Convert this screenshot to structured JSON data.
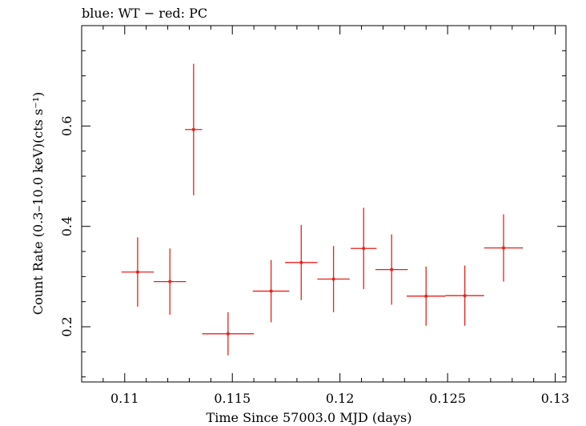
{
  "chart_data": {
    "type": "scatter",
    "title": "blue: WT − red: PC",
    "xlabel": "Time Since 57003.0 MJD (days)",
    "ylabel": "Count Rate (0.3–10.0 keV)(cts s⁻¹)",
    "xlim": [
      0.108,
      0.1305
    ],
    "ylim": [
      0.09,
      0.8
    ],
    "xticks": [
      0.11,
      0.115,
      0.12,
      0.125,
      0.13
    ],
    "xtick_labels": [
      "0.11",
      "0.115",
      "0.12",
      "0.125",
      "0.13"
    ],
    "yticks": [
      0.2,
      0.4,
      0.6
    ],
    "ytick_labels": [
      "0.2",
      "0.4",
      "0.6"
    ],
    "grid": false,
    "series": [
      {
        "color": "#e8201c",
        "points": [
          {
            "x": 0.1106,
            "y": 0.309,
            "xerr": 0.00075,
            "yerr_low": 0.069,
            "yerr_high": 0.069
          },
          {
            "x": 0.1121,
            "y": 0.29,
            "xerr": 0.00075,
            "yerr_low": 0.066,
            "yerr_high": 0.066
          },
          {
            "x": 0.1132,
            "y": 0.593,
            "xerr": 0.0004,
            "yerr_low": 0.131,
            "yerr_high": 0.131
          },
          {
            "x": 0.1148,
            "y": 0.186,
            "xerr": 0.0012,
            "yerr_low": 0.043,
            "yerr_high": 0.043
          },
          {
            "x": 0.1168,
            "y": 0.271,
            "xerr": 0.00085,
            "yerr_low": 0.062,
            "yerr_high": 0.062
          },
          {
            "x": 0.1182,
            "y": 0.328,
            "xerr": 0.00075,
            "yerr_low": 0.075,
            "yerr_high": 0.075
          },
          {
            "x": 0.1197,
            "y": 0.295,
            "xerr": 0.00075,
            "yerr_low": 0.066,
            "yerr_high": 0.066
          },
          {
            "x": 0.1211,
            "y": 0.356,
            "xerr": 0.0006,
            "yerr_low": 0.081,
            "yerr_high": 0.081
          },
          {
            "x": 0.1224,
            "y": 0.314,
            "xerr": 0.00075,
            "yerr_low": 0.07,
            "yerr_high": 0.07
          },
          {
            "x": 0.124,
            "y": 0.261,
            "xerr": 0.0009,
            "yerr_low": 0.059,
            "yerr_high": 0.059
          },
          {
            "x": 0.1258,
            "y": 0.262,
            "xerr": 0.0009,
            "yerr_low": 0.06,
            "yerr_high": 0.06
          },
          {
            "x": 0.1276,
            "y": 0.357,
            "xerr": 0.0009,
            "yerr_low": 0.067,
            "yerr_high": 0.067
          }
        ]
      }
    ]
  }
}
